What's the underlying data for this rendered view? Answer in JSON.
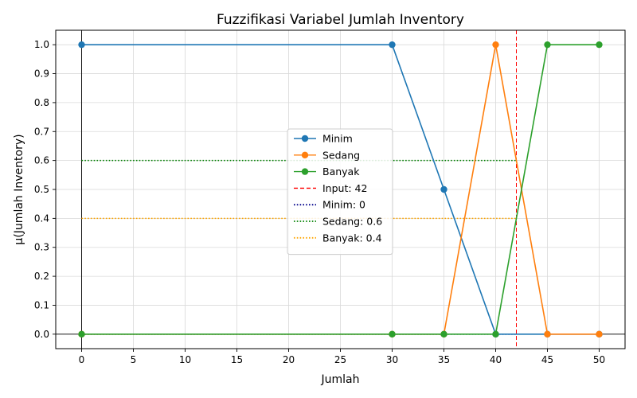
{
  "chart_data": {
    "type": "line",
    "title": "Fuzzifikasi Variabel Jumlah Inventory",
    "xlabel": "Jumlah",
    "ylabel": "μ(Jumlah Inventory)",
    "xlim": [
      -2.5,
      52.5
    ],
    "ylim": [
      -0.05,
      1.05
    ],
    "xticks": [
      0,
      5,
      10,
      15,
      20,
      25,
      30,
      35,
      40,
      45,
      50
    ],
    "yticks": [
      0.0,
      0.1,
      0.2,
      0.3,
      0.4,
      0.5,
      0.6,
      0.7,
      0.8,
      0.9,
      1.0
    ],
    "grid": true,
    "legend_position": "center",
    "series": [
      {
        "name": "Minim",
        "color": "#1f77b4",
        "style": "solid-marker",
        "x": [
          0,
          30,
          35,
          40,
          45,
          50
        ],
        "y": [
          1,
          1,
          0.5,
          0,
          0,
          0
        ]
      },
      {
        "name": "Sedang",
        "color": "#ff7f0e",
        "style": "solid-marker",
        "x": [
          0,
          30,
          35,
          40,
          45,
          50
        ],
        "y": [
          0,
          0,
          0,
          1,
          0,
          0
        ]
      },
      {
        "name": "Banyak",
        "color": "#2ca02c",
        "style": "solid-marker",
        "x": [
          0,
          30,
          35,
          40,
          45,
          50
        ],
        "y": [
          0,
          0,
          0,
          0,
          1,
          1
        ]
      }
    ],
    "reference_lines": [
      {
        "name": "Input: 42",
        "orientation": "vertical",
        "value": 42,
        "color": "#ff0000",
        "style": "dashed"
      },
      {
        "name": "Minim: 0",
        "orientation": "horizontal",
        "value": 0,
        "xmax": 42,
        "color": "#00008b",
        "style": "dotted"
      },
      {
        "name": "Sedang: 0.6",
        "orientation": "horizontal",
        "value": 0.6,
        "xmax": 42,
        "color": "#008000",
        "style": "dotted"
      },
      {
        "name": "Banyak: 0.4",
        "orientation": "horizontal",
        "value": 0.4,
        "xmax": 42,
        "color": "#ffa500",
        "style": "dotted"
      }
    ],
    "axis_lines": [
      {
        "orientation": "vertical",
        "value": 0
      },
      {
        "orientation": "horizontal",
        "value": 0
      }
    ]
  }
}
